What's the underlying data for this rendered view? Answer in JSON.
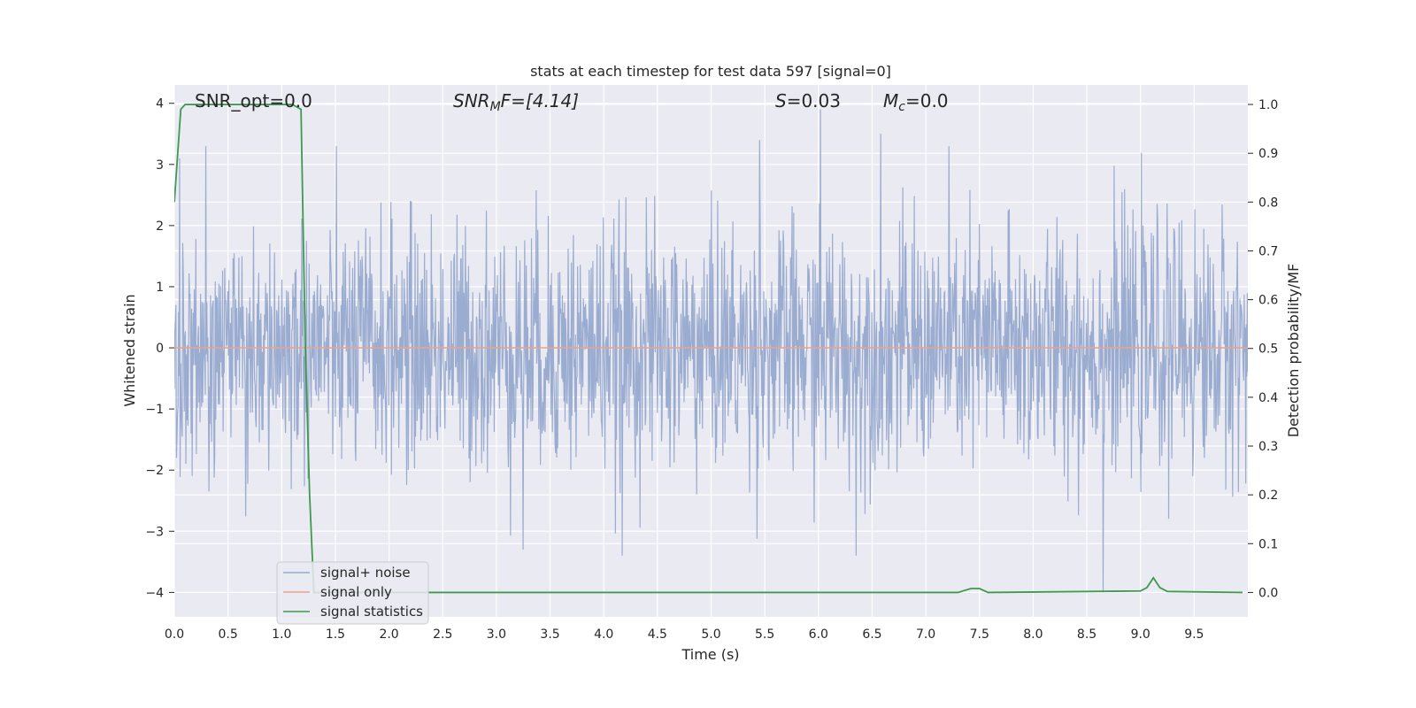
{
  "chart_data": {
    "type": "line",
    "title": "stats at each timestep for test data 597 [signal=0]",
    "xlabel": "Time (s)",
    "ylabel": "Whitened strain",
    "ylabel_right": "Detection probability/MF",
    "xlim": [
      0.0,
      10.0
    ],
    "ylim": [
      -4.4,
      4.3
    ],
    "ylim_right": [
      -0.05,
      1.04
    ],
    "xticks": [
      "0.0",
      "0.5",
      "1.0",
      "1.5",
      "2.0",
      "2.5",
      "3.0",
      "3.5",
      "4.0",
      "4.5",
      "5.0",
      "5.5",
      "6.0",
      "6.5",
      "7.0",
      "7.5",
      "8.0",
      "8.5",
      "9.0",
      "9.5"
    ],
    "yticks": [
      "−4",
      "−3",
      "−2",
      "−1",
      "0",
      "1",
      "2",
      "3",
      "4"
    ],
    "yticks_right": [
      "0.0",
      "0.1",
      "0.2",
      "0.3",
      "0.4",
      "0.5",
      "0.6",
      "0.7",
      "0.8",
      "0.9",
      "1.0"
    ],
    "grid": true,
    "legend_placement": "lower-left",
    "annotations": {
      "snr_opt": "SNR_opt=0.0",
      "snr_mf_prefix": "SNR",
      "snr_mf_sub": "M",
      "snr_mf_suffix": "F=[4.14]",
      "s_var": "S",
      "s_val": "=0.03",
      "mc_var": "M",
      "mc_sub": "c",
      "mc_val": "=0.0"
    },
    "series": [
      {
        "name": "signal+ noise",
        "color": "#97a9cf",
        "axis": "left",
        "description": "whitened noise, std ~1",
        "notable_peaks": [
          {
            "x": 0.05,
            "y": 3.1
          },
          {
            "x": 5.45,
            "y": 3.4
          },
          {
            "x": 6.02,
            "y": 3.9
          },
          {
            "x": 6.58,
            "y": 3.5
          },
          {
            "x": 3.25,
            "y": -3.3
          },
          {
            "x": 4.17,
            "y": -3.4
          },
          {
            "x": 6.35,
            "y": -3.4
          },
          {
            "x": 8.65,
            "y": -4.0
          }
        ]
      },
      {
        "name": "signal only",
        "color": "#e8a48d",
        "axis": "left",
        "x": [
          0.0,
          10.0
        ],
        "y": [
          0.0,
          0.0
        ]
      },
      {
        "name": "signal statistics",
        "color": "#3e9a4f",
        "axis": "right",
        "x": [
          0.0,
          0.06,
          0.1,
          0.2,
          1.0,
          1.1,
          1.18,
          1.22,
          1.26,
          1.3,
          1.5,
          7.3,
          7.42,
          7.5,
          7.58,
          9.0,
          9.06,
          9.12,
          9.18,
          9.25,
          9.95
        ],
        "y": [
          0.8,
          0.99,
          1.0,
          1.0,
          1.0,
          1.0,
          0.99,
          0.5,
          0.2,
          0.0,
          0.0,
          0.0,
          0.008,
          0.008,
          0.0,
          0.003,
          0.01,
          0.03,
          0.01,
          0.002,
          0.0
        ]
      }
    ]
  }
}
